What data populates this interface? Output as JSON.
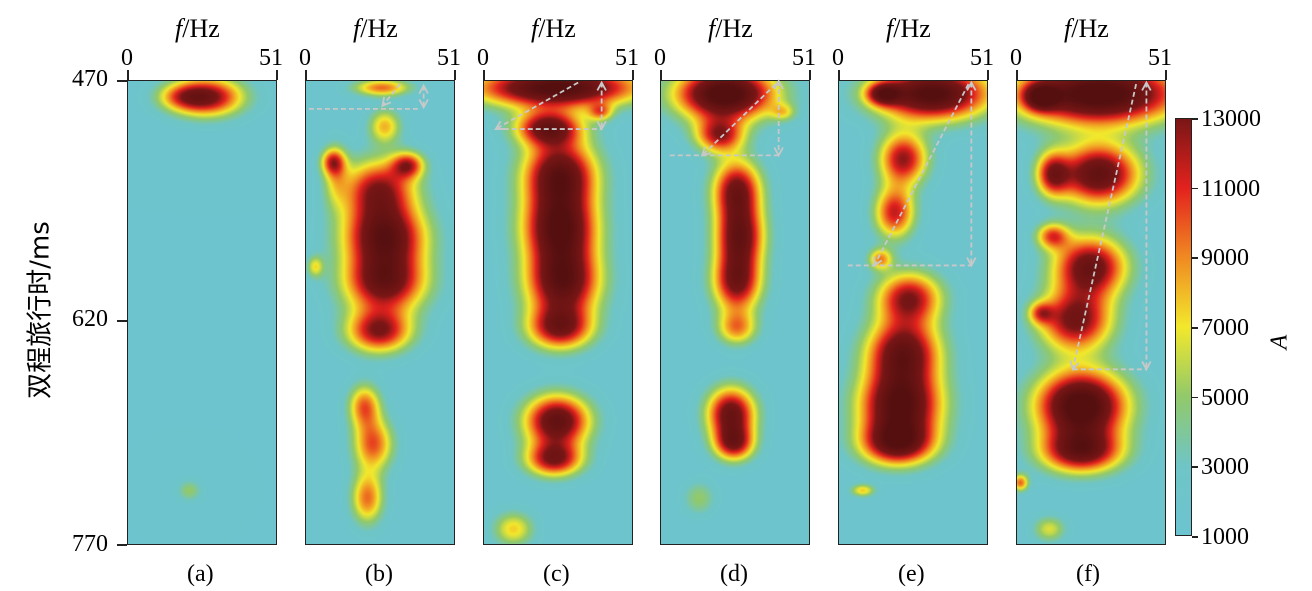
{
  "chart_data": {
    "type": "heatmap",
    "ylabel": "双程旅行时/ms",
    "xlabel_italic": "f",
    "xlabel_unit": "/Hz",
    "xlim": [
      0,
      51
    ],
    "ylim": [
      470,
      770
    ],
    "x_ticks": [
      "0",
      "51"
    ],
    "y_ticks": [
      "470",
      "620",
      "770"
    ],
    "colorbar": {
      "label": "A",
      "range": [
        1000,
        13000
      ],
      "ticks": [
        "13000",
        "11000",
        "9000",
        "7000",
        "5000",
        "3000",
        "1000"
      ],
      "colors": [
        [
          1000,
          "#6cc4d0"
        ],
        [
          3000,
          "#6fc5c6"
        ],
        [
          5000,
          "#92c96a"
        ],
        [
          7000,
          "#f2e82c"
        ],
        [
          9000,
          "#f08a22"
        ],
        [
          11000,
          "#e3221e"
        ],
        [
          13000,
          "#7a1616"
        ]
      ]
    },
    "panels": [
      {
        "label": "(a)",
        "blobs": [
          [
            27,
            480,
            9,
            9,
            12000
          ],
          [
            18,
            480,
            6,
            6,
            4000
          ],
          [
            21,
            735,
            3,
            5,
            3500
          ]
        ],
        "arrows": []
      },
      {
        "label": "(b)",
        "blobs": [
          [
            26,
            474,
            7,
            4,
            8000
          ],
          [
            27,
            499,
            4,
            8,
            6500
          ],
          [
            9,
            522,
            3,
            6,
            7000
          ],
          [
            35,
            524,
            4,
            6,
            8500
          ],
          [
            25,
            540,
            9,
            14,
            11000
          ],
          [
            27,
            570,
            10,
            14,
            13000
          ],
          [
            27,
            600,
            10,
            14,
            13000
          ],
          [
            25,
            632,
            8,
            10,
            11000
          ],
          [
            20,
            680,
            4,
            10,
            8000
          ],
          [
            23,
            705,
            5,
            12,
            8500
          ],
          [
            21,
            740,
            4,
            12,
            8000
          ],
          [
            10,
            530,
            3,
            14,
            4000
          ],
          [
            3,
            590,
            2,
            5,
            5000
          ]
        ],
        "arrows": [
          [
            32,
            472,
            26,
            486,
            "arrow"
          ],
          [
            1,
            488,
            38,
            488,
            "line"
          ],
          [
            40,
            473,
            40,
            487,
            "double"
          ]
        ]
      },
      {
        "label": "(c)",
        "blobs": [
          [
            25,
            474,
            20,
            9,
            16000
          ],
          [
            22,
            500,
            8,
            8,
            12000
          ],
          [
            26,
            530,
            9,
            16,
            14000
          ],
          [
            26,
            565,
            9,
            16,
            14000
          ],
          [
            27,
            600,
            9,
            16,
            14000
          ],
          [
            26,
            630,
            8,
            10,
            11000
          ],
          [
            25,
            690,
            8,
            12,
            14000
          ],
          [
            24,
            715,
            7,
            8,
            11000
          ],
          [
            10,
            760,
            5,
            8,
            6000
          ],
          [
            40,
            490,
            3,
            4,
            6000
          ]
        ],
        "arrows": [
          [
            32,
            471,
            4,
            501,
            "arrow"
          ],
          [
            4,
            501,
            40,
            501,
            "line"
          ],
          [
            40,
            471,
            40,
            501,
            "double"
          ]
        ]
      },
      {
        "label": "(d)",
        "blobs": [
          [
            22,
            478,
            12,
            12,
            17000
          ],
          [
            20,
            505,
            6,
            8,
            10000
          ],
          [
            26,
            540,
            6,
            14,
            12000
          ],
          [
            27,
            570,
            6,
            14,
            12000
          ],
          [
            26,
            600,
            6,
            14,
            12000
          ],
          [
            26,
            630,
            5,
            8,
            7000
          ],
          [
            24,
            685,
            6,
            12,
            13000
          ],
          [
            25,
            705,
            5,
            8,
            10000
          ],
          [
            13,
            740,
            4,
            8,
            3500
          ],
          [
            42,
            490,
            3,
            4,
            4000
          ]
        ],
        "arrows": [
          [
            39,
            472,
            14,
            518,
            "arrow"
          ],
          [
            3,
            518,
            40,
            518,
            "line"
          ],
          [
            40,
            470,
            40,
            518,
            "double"
          ]
        ]
      },
      {
        "label": "(e)",
        "blobs": [
          [
            32,
            478,
            14,
            12,
            16000
          ],
          [
            15,
            478,
            4,
            5,
            9000
          ],
          [
            22,
            520,
            6,
            12,
            11000
          ],
          [
            19,
            555,
            5,
            12,
            10000
          ],
          [
            14,
            585,
            3,
            5,
            7000
          ],
          [
            24,
            610,
            8,
            12,
            11000
          ],
          [
            22,
            645,
            9,
            15,
            13000
          ],
          [
            21,
            680,
            10,
            16,
            15000
          ],
          [
            20,
            705,
            9,
            10,
            12000
          ],
          [
            8,
            735,
            3,
            3,
            6000
          ]
        ],
        "arrows": [
          [
            44,
            472,
            12,
            589,
            "arrow"
          ],
          [
            3,
            589,
            45,
            589,
            "line"
          ],
          [
            45,
            471,
            45,
            589,
            "double"
          ]
        ]
      },
      {
        "label": "(f)",
        "blobs": [
          [
            28,
            478,
            20,
            14,
            17000
          ],
          [
            8,
            480,
            4,
            6,
            9000
          ],
          [
            12,
            530,
            4,
            10,
            9000
          ],
          [
            28,
            530,
            10,
            14,
            14000
          ],
          [
            12,
            570,
            4,
            6,
            8000
          ],
          [
            25,
            590,
            9,
            14,
            13000
          ],
          [
            20,
            625,
            9,
            14,
            12000
          ],
          [
            8,
            620,
            3,
            5,
            6000
          ],
          [
            22,
            680,
            11,
            16,
            17000
          ],
          [
            22,
            710,
            10,
            10,
            12000
          ],
          [
            1,
            730,
            2,
            4,
            8000
          ],
          [
            11,
            760,
            4,
            6,
            5000
          ]
        ],
        "arrows": [
          [
            40.5,
            472,
            19,
            656,
            "arrow"
          ],
          [
            19,
            656,
            44,
            656,
            "line"
          ],
          [
            44,
            471,
            44,
            656,
            "double"
          ]
        ]
      }
    ]
  }
}
